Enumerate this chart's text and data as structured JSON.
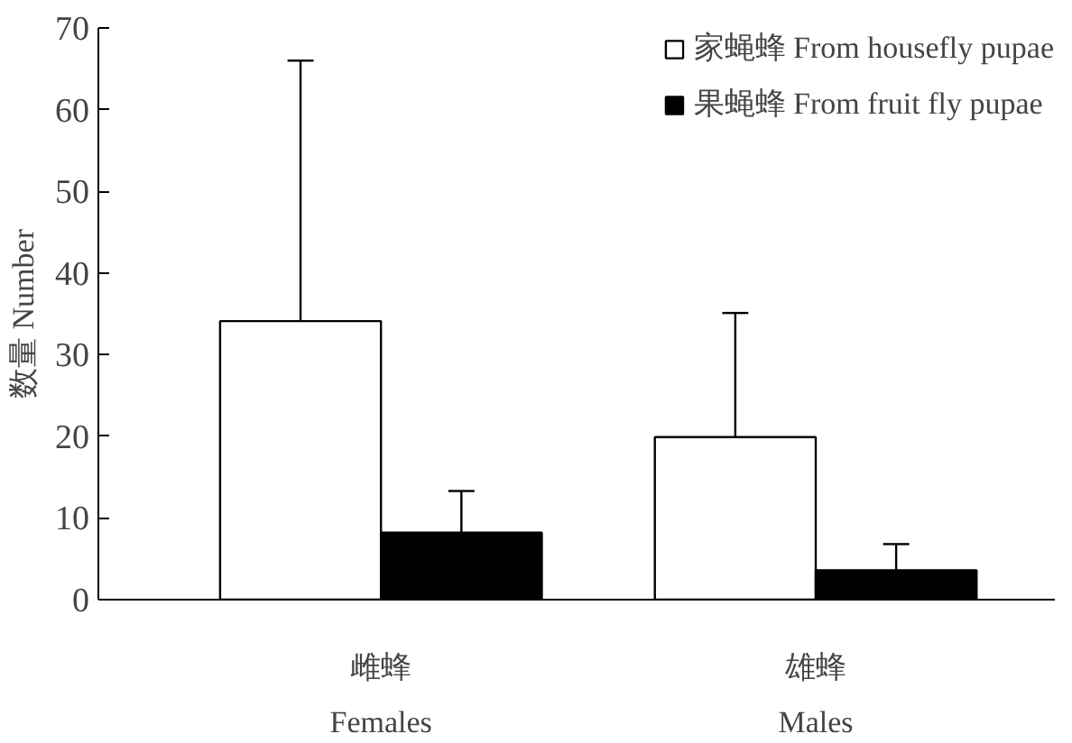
{
  "chart_data": {
    "type": "bar",
    "ylabel": "数量 Number",
    "categories": [
      "雌蜂\nFemales",
      "雄蜂\nMales"
    ],
    "series": [
      {
        "name": "家蝇蜂 From housefly pupae",
        "color": "#ffffff",
        "values": [
          34.1,
          19.9
        ],
        "errors": [
          [
            34.1,
            66.0
          ],
          [
            19.9,
            35.1
          ]
        ]
      },
      {
        "name": "果蝇蜂 From fruit fly pupae",
        "color": "#000000",
        "values": [
          8.2,
          3.6
        ],
        "errors": [
          [
            8.2,
            13.3
          ],
          [
            3.6,
            6.8
          ]
        ]
      }
    ],
    "ylim": [
      0,
      70
    ],
    "yticks": [
      0,
      10,
      20,
      30,
      40,
      50,
      60,
      70
    ],
    "grid": false,
    "legend": "top right"
  }
}
